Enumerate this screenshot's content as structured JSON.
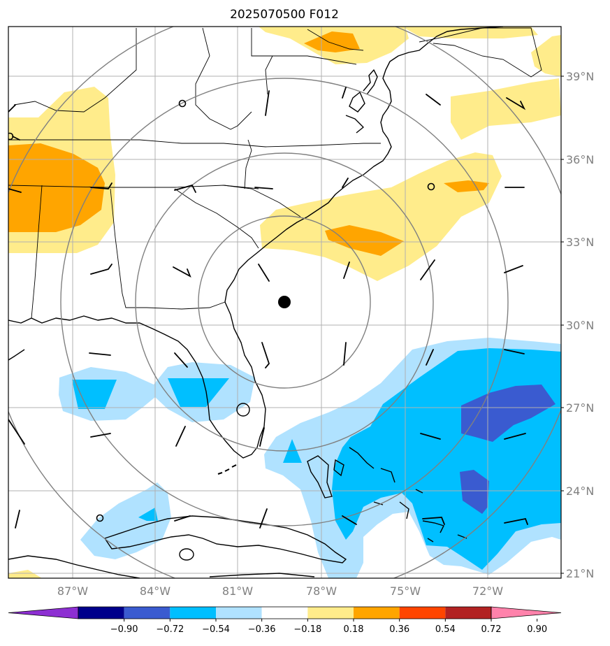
{
  "title": "2025070500 F012",
  "lat_labels": [
    "39°N",
    "36°N",
    "33°N",
    "30°N",
    "27°N",
    "24°N",
    "21°N"
  ],
  "lon_labels": [
    "87°W",
    "84°W",
    "81°W",
    "78°W",
    "75°W",
    "72°W"
  ],
  "colorbar": {
    "colors": [
      "#8d2fd2",
      "#00008b",
      "#3a5bd0",
      "#00bfff",
      "#b0e2ff",
      "#ffffff",
      "#ffec8b",
      "#ffa500",
      "#ff4500",
      "#b22222",
      "#ff82ab"
    ],
    "tick_labels": [
      "−0.90",
      "−0.72",
      "−0.54",
      "−0.36",
      "−0.18",
      "0.18",
      "0.36",
      "0.54",
      "0.72",
      "0.90"
    ]
  },
  "storm_center": {
    "lon": "79.3°W",
    "lat": "30.8°N"
  }
}
